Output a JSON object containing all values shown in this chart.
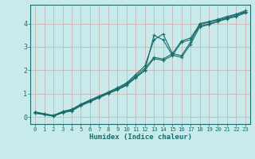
{
  "xlabel": "Humidex (Indice chaleur)",
  "background_color": "#c8eaea",
  "grid_color": "#b0d0d0",
  "line_color": "#1a6b6b",
  "xlim": [
    -0.5,
    23.5
  ],
  "ylim": [
    -0.3,
    4.8
  ],
  "xticks": [
    0,
    1,
    2,
    3,
    4,
    5,
    6,
    7,
    8,
    9,
    10,
    11,
    12,
    13,
    14,
    15,
    16,
    17,
    18,
    19,
    20,
    21,
    22,
    23
  ],
  "yticks": [
    0,
    1,
    2,
    3,
    4
  ],
  "lines": [
    {
      "x": [
        0,
        1,
        2,
        3,
        4,
        5,
        6,
        7,
        8,
        9,
        10,
        11,
        12,
        13,
        14,
        15,
        16,
        17,
        18,
        19,
        20,
        21,
        22,
        23
      ],
      "y": [
        0.18,
        0.12,
        0.05,
        0.2,
        0.28,
        0.5,
        0.68,
        0.85,
        1.02,
        1.18,
        1.38,
        1.7,
        2.0,
        2.5,
        2.42,
        2.62,
        3.2,
        3.3,
        3.88,
        3.98,
        4.1,
        4.22,
        4.32,
        4.48
      ]
    },
    {
      "x": [
        0,
        1,
        2,
        3,
        4,
        5,
        6,
        7,
        8,
        9,
        10,
        11,
        12,
        13,
        14,
        15,
        16,
        17,
        18,
        19,
        20,
        21,
        22,
        23
      ],
      "y": [
        0.2,
        0.13,
        0.06,
        0.22,
        0.3,
        0.52,
        0.7,
        0.87,
        1.04,
        1.22,
        1.42,
        1.75,
        2.08,
        2.55,
        2.48,
        2.7,
        3.25,
        3.38,
        3.95,
        4.05,
        4.15,
        4.25,
        4.38,
        4.5
      ]
    },
    {
      "x": [
        0,
        1,
        2,
        3,
        4,
        5,
        6,
        7,
        8,
        9,
        10,
        11,
        12,
        13,
        14,
        15,
        16,
        17,
        18,
        19,
        20,
        21,
        22,
        23
      ],
      "y": [
        0.22,
        0.14,
        0.07,
        0.24,
        0.33,
        0.55,
        0.73,
        0.9,
        1.07,
        1.25,
        1.46,
        1.82,
        2.18,
        3.3,
        3.55,
        2.72,
        2.62,
        3.2,
        4.0,
        4.08,
        4.18,
        4.3,
        4.4,
        4.55
      ]
    },
    {
      "x": [
        0,
        1,
        2,
        3,
        4,
        5,
        6,
        7,
        8,
        9,
        10,
        11,
        12,
        13,
        14,
        15,
        16,
        17,
        18,
        19,
        20,
        21,
        22,
        23
      ],
      "y": [
        0.16,
        0.1,
        0.03,
        0.18,
        0.26,
        0.48,
        0.65,
        0.82,
        1.0,
        1.16,
        1.35,
        1.68,
        1.98,
        3.5,
        3.3,
        2.65,
        2.55,
        3.1,
        3.85,
        3.95,
        4.08,
        4.2,
        4.3,
        4.45
      ]
    }
  ]
}
